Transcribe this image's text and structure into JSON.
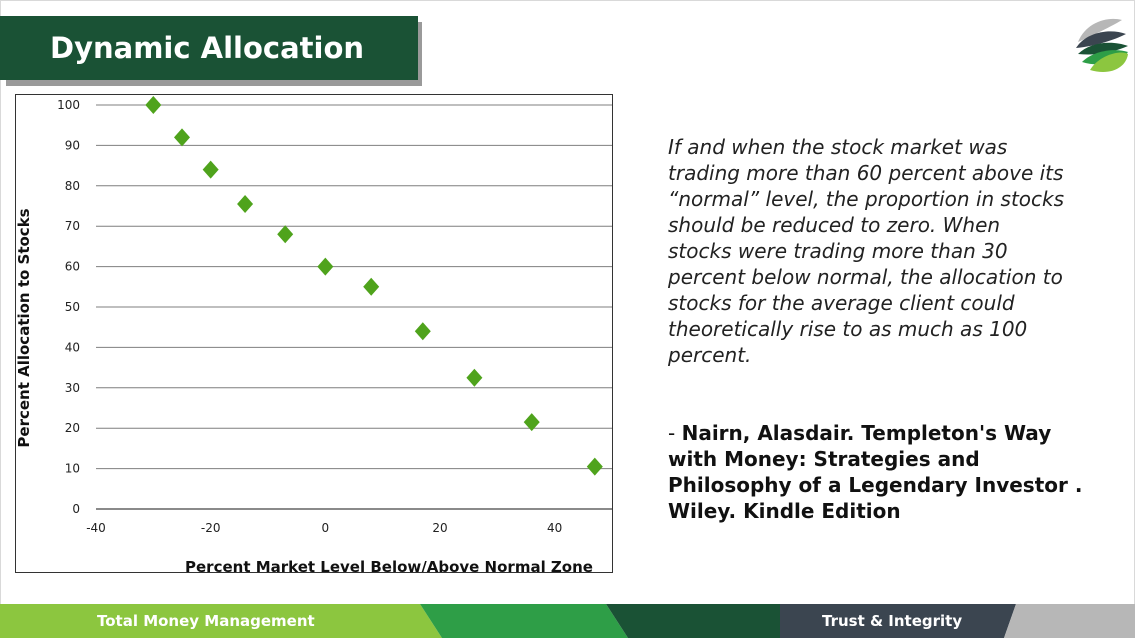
{
  "slide": {
    "title": "Dynamic Allocation",
    "logo_icon": "leaf-logo-icon"
  },
  "quote": {
    "text": "If and when the stock market was trading more than 60 percent above its “normal” level, the proportion in stocks should be reduced to zero. When stocks were trading more than 30 percent below normal, the allocation to stocks for the average client could theoretically rise to as much as 100 percent.",
    "dash": "- ",
    "citation": "Nairn, Alasdair. Templeton's Way with Money: Strategies and Philosophy of a Legendary Investor . Wiley. Kindle Edition"
  },
  "footer": {
    "left_label": "Total Money Management",
    "right_label": "Trust & Integrity",
    "colors": [
      "#8cc63f",
      "#2e9e47",
      "#1a5235",
      "#3b4550",
      "#b7b7b7"
    ]
  },
  "chart_data": {
    "type": "scatter",
    "xlabel": "Percent Market Level Below/Above Normal Zone",
    "ylabel": "Percent Allocation to Stocks",
    "xlim": [
      -40,
      50
    ],
    "ylim": [
      0,
      100
    ],
    "xticks": [
      -40,
      -20,
      0,
      20,
      40
    ],
    "yticks": [
      0,
      10,
      20,
      30,
      40,
      50,
      60,
      70,
      80,
      90,
      100
    ],
    "grid": "horizontal",
    "marker": "diamond",
    "marker_color": "#4fa31c",
    "points": [
      {
        "x": -30,
        "y": 100
      },
      {
        "x": -25,
        "y": 92
      },
      {
        "x": -20,
        "y": 84
      },
      {
        "x": -14,
        "y": 75.5
      },
      {
        "x": -7,
        "y": 68
      },
      {
        "x": 0,
        "y": 60
      },
      {
        "x": 8,
        "y": 55
      },
      {
        "x": 17,
        "y": 44
      },
      {
        "x": 26,
        "y": 32.5
      },
      {
        "x": 36,
        "y": 21.5
      },
      {
        "x": 47,
        "y": 10.5
      }
    ]
  }
}
